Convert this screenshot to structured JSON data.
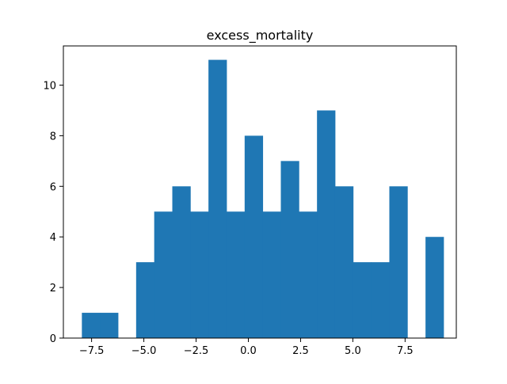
{
  "chart_data": {
    "type": "bar",
    "title": "excess_mortality",
    "xlabel": "",
    "ylabel": "",
    "color": "#1f77b4",
    "xlim": [
      -8.85,
      9.95
    ],
    "ylim": [
      0,
      11.55
    ],
    "bin_edges": [
      -7.965,
      -7.1,
      -6.234,
      -5.369,
      -4.504,
      -3.638,
      -2.773,
      -1.908,
      -1.042,
      -0.177,
      0.689,
      1.554,
      2.419,
      3.285,
      4.15,
      5.015,
      5.881,
      6.746,
      7.611,
      8.477,
      9.342
    ],
    "counts": [
      1,
      1,
      0,
      3,
      5,
      6,
      5,
      11,
      5,
      8,
      5,
      7,
      5,
      9,
      6,
      3,
      3,
      6,
      0,
      4
    ],
    "x_ticks": [
      -7.5,
      -5.0,
      -2.5,
      0.0,
      2.5,
      5.0,
      7.5
    ],
    "x_tick_labels": [
      "−7.5",
      "−5.0",
      "−2.5",
      "0.0",
      "2.5",
      "5.0",
      "7.5"
    ],
    "y_ticks": [
      0,
      2,
      4,
      6,
      8,
      10
    ],
    "y_tick_labels": [
      "0",
      "2",
      "4",
      "6",
      "8",
      "10"
    ],
    "grid": false,
    "legend": "none"
  }
}
